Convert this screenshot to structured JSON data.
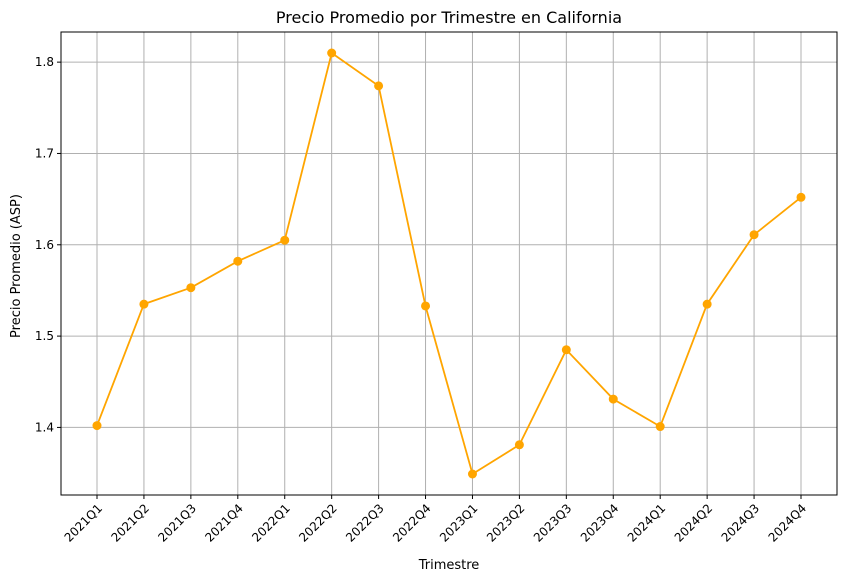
{
  "chart_data": {
    "type": "line",
    "title": "Precio Promedio por Trimestre en California",
    "xlabel": "Trimestre",
    "ylabel": "Precio Promedio (ASP)",
    "categories": [
      "2021Q1",
      "2021Q2",
      "2021Q3",
      "2021Q4",
      "2022Q1",
      "2022Q2",
      "2022Q3",
      "2022Q4",
      "2023Q1",
      "2023Q2",
      "2023Q3",
      "2023Q4",
      "2024Q1",
      "2024Q2",
      "2024Q3",
      "2024Q4"
    ],
    "series": [
      {
        "values": [
          1.402,
          1.535,
          1.553,
          1.582,
          1.605,
          1.81,
          1.774,
          1.533,
          1.349,
          1.381,
          1.485,
          1.431,
          1.401,
          1.535,
          1.611,
          1.652
        ]
      }
    ],
    "yticks": [
      "1.4",
      "1.5",
      "1.6",
      "1.7",
      "1.8"
    ],
    "ylim": [
      1.326,
      1.833
    ],
    "grid": true,
    "marker": "circle",
    "colors": {
      "line": "#FFA500"
    }
  }
}
